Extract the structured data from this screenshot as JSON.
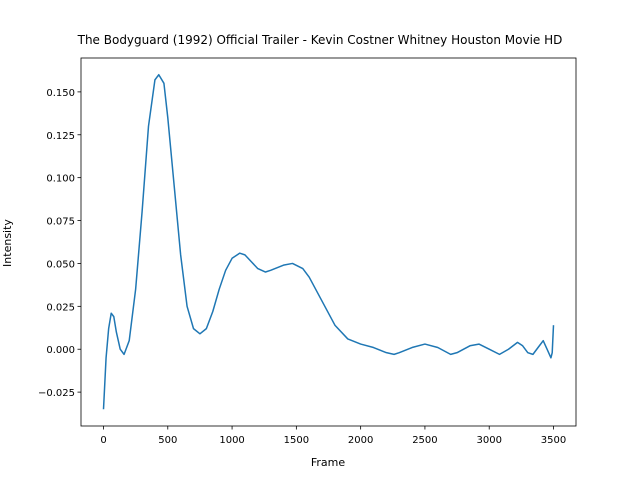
{
  "chart_data": {
    "type": "line",
    "title": "The Bodyguard (1992) Official Trailer - Kevin Costner Whitney Houston Movie HD",
    "xlabel": "Frame",
    "ylabel": "Intensity",
    "x": [
      0,
      20,
      40,
      60,
      80,
      100,
      130,
      160,
      200,
      250,
      300,
      350,
      400,
      430,
      470,
      500,
      550,
      600,
      650,
      700,
      750,
      800,
      850,
      900,
      950,
      1000,
      1060,
      1100,
      1150,
      1200,
      1260,
      1300,
      1400,
      1470,
      1550,
      1600,
      1700,
      1800,
      1900,
      2000,
      2100,
      2200,
      2260,
      2300,
      2400,
      2500,
      2600,
      2700,
      2750,
      2850,
      2920,
      3000,
      3080,
      3150,
      3220,
      3260,
      3300,
      3340,
      3380,
      3420,
      3450,
      3480,
      3490,
      3500
    ],
    "series": [
      {
        "name": "Intensity",
        "color": "#1f77b4",
        "values": [
          -0.035,
          -0.005,
          0.012,
          0.021,
          0.019,
          0.01,
          0.0,
          -0.003,
          0.005,
          0.035,
          0.08,
          0.13,
          0.157,
          0.16,
          0.155,
          0.135,
          0.095,
          0.055,
          0.025,
          0.012,
          0.009,
          0.012,
          0.022,
          0.035,
          0.046,
          0.053,
          0.056,
          0.055,
          0.051,
          0.047,
          0.045,
          0.046,
          0.049,
          0.05,
          0.047,
          0.042,
          0.028,
          0.014,
          0.006,
          0.003,
          0.001,
          -0.002,
          -0.003,
          -0.002,
          0.001,
          0.003,
          0.001,
          -0.003,
          -0.002,
          0.002,
          0.003,
          0.0,
          -0.003,
          0.0,
          0.004,
          0.002,
          -0.002,
          -0.003,
          0.001,
          0.005,
          0.0,
          -0.005,
          -0.002,
          0.014
        ]
      }
    ],
    "xlim": [
      -175,
      3675
    ],
    "ylim": [
      -0.04475,
      0.16975
    ],
    "xticks": [
      0,
      500,
      1000,
      1500,
      2000,
      2500,
      3000,
      3500
    ],
    "yticks": [
      {
        "value": -0.025,
        "label": "−0.025"
      },
      {
        "value": 0,
        "label": "0.000"
      },
      {
        "value": 0.025,
        "label": "0.025"
      },
      {
        "value": 0.05,
        "label": "0.050"
      },
      {
        "value": 0.075,
        "label": "0.075"
      },
      {
        "value": 0.1,
        "label": "0.100"
      },
      {
        "value": 0.125,
        "label": "0.125"
      },
      {
        "value": 0.15,
        "label": "0.150"
      }
    ]
  }
}
